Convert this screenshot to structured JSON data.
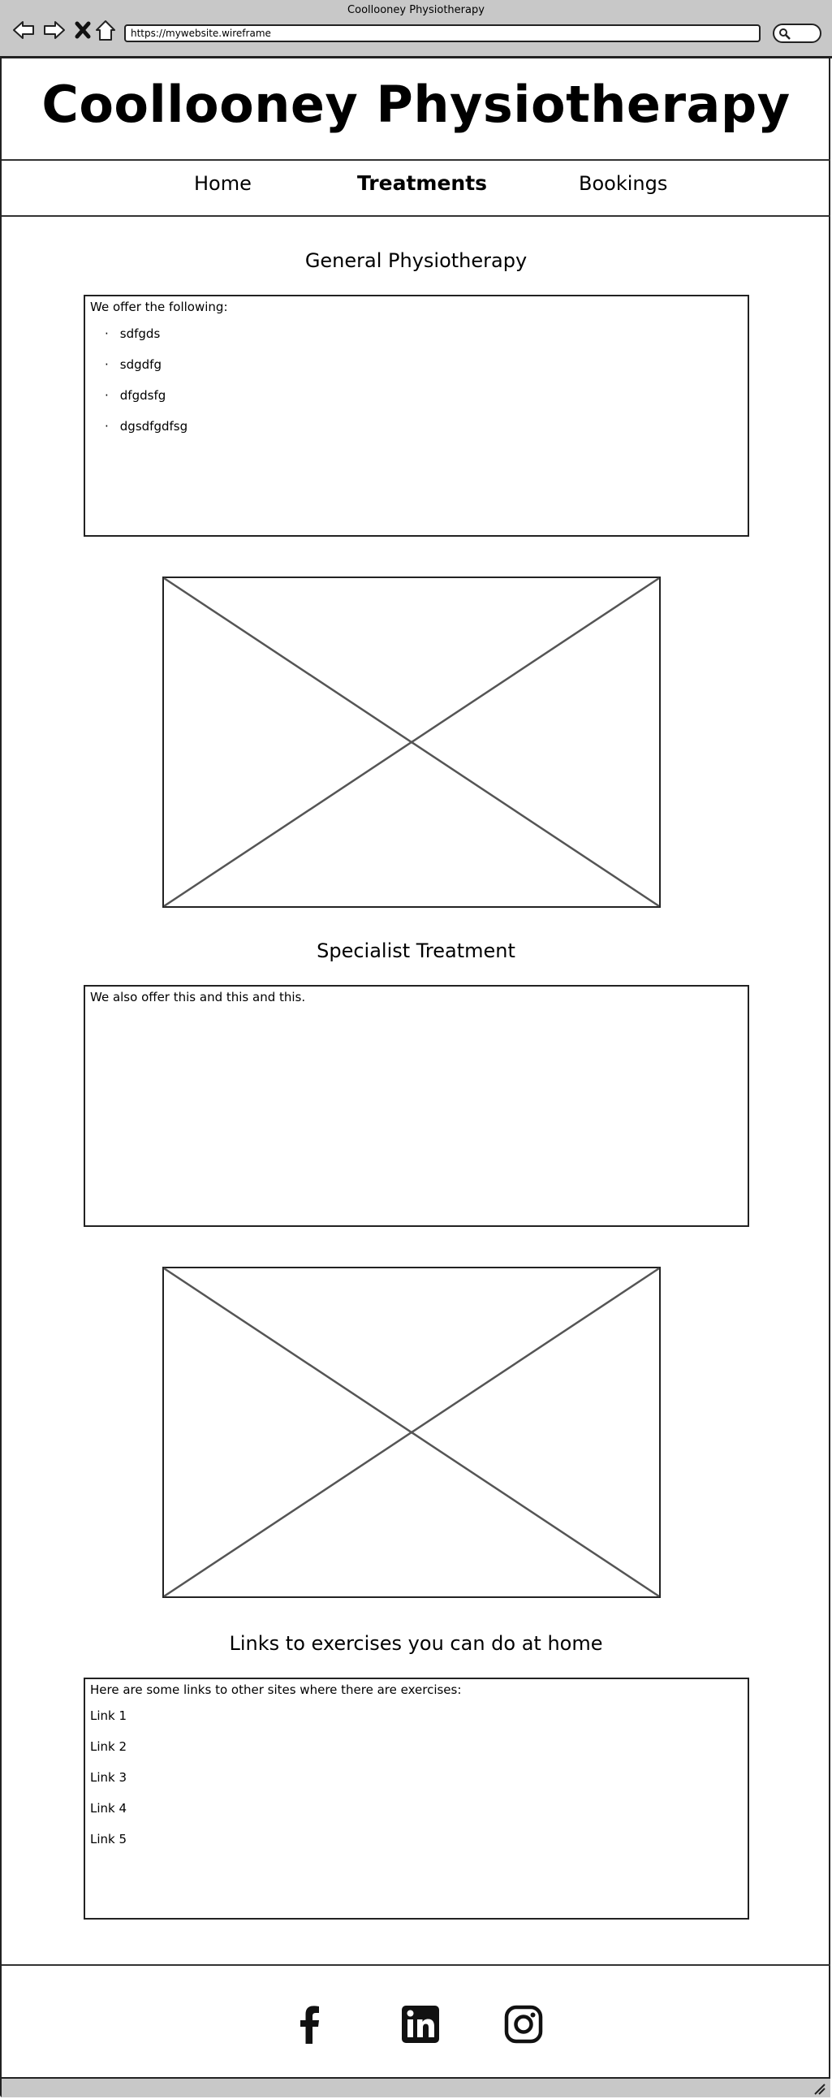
{
  "browser": {
    "window_title": "Coollooney Physiotherapy",
    "url": "https://mywebsite.wireframe",
    "icons": [
      "back-arrow-icon",
      "forward-arrow-icon",
      "close-icon",
      "home-icon",
      "search-icon"
    ]
  },
  "header": {
    "site_title": "Coollooney Physiotherapy"
  },
  "nav": {
    "items": [
      {
        "label": "Home",
        "active": false
      },
      {
        "label": "Treatments",
        "active": true
      },
      {
        "label": "Bookings",
        "active": false
      }
    ]
  },
  "sections": {
    "general": {
      "heading": "General Physiotherapy",
      "intro": "We offer the following:",
      "items": [
        "sdfgds",
        "sdgdfg",
        "dfgdsfg",
        "dgsdfgdfsg"
      ]
    },
    "specialist": {
      "heading": "Specialist Treatment",
      "intro": "We also offer this and this and this."
    },
    "exercises": {
      "heading": "Links to exercises you can do at home",
      "intro": "Here are some links to other sites where there are exercises:",
      "links": [
        "Link 1",
        "Link 2",
        "Link 3",
        "Link 4",
        "Link 5"
      ]
    }
  },
  "footer": {
    "icons": [
      "facebook-icon",
      "linkedin-icon",
      "instagram-icon"
    ]
  }
}
